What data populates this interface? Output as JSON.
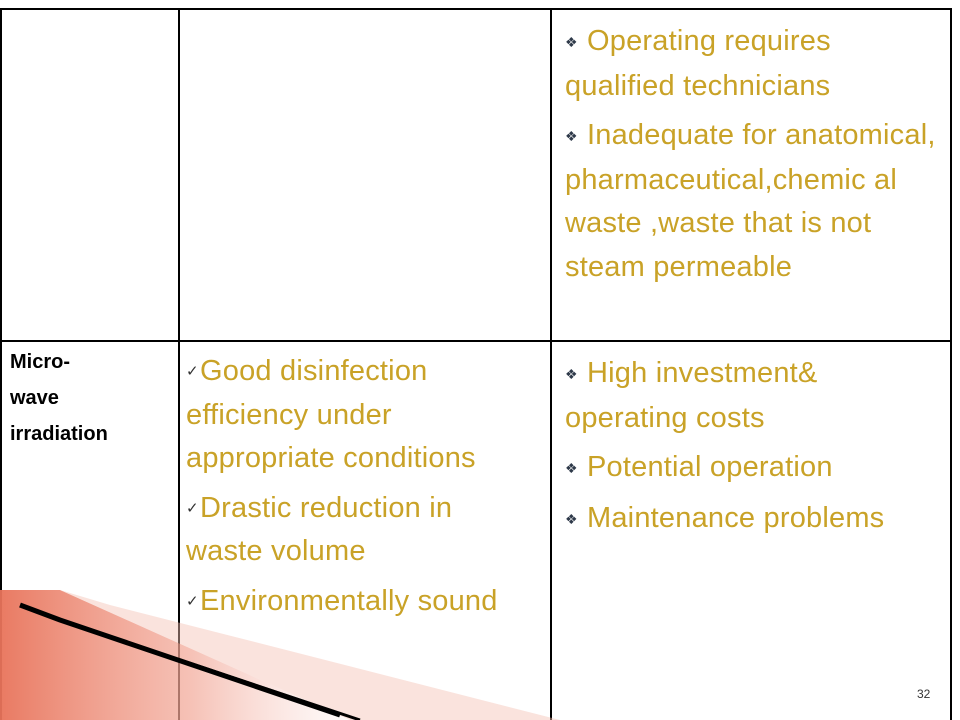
{
  "table": {
    "row1": {
      "disadvantages": [
        "Operating requires qualified technicians",
        "Inadequate for anatomical, pharmaceutical,chemic al waste ,waste that is not steam permeable"
      ]
    },
    "row2": {
      "label_lines": [
        "Micro-",
        "wave",
        "irradiation"
      ],
      "advantages": [
        "Good disinfection efficiency under appropriate conditions",
        "Drastic reduction in waste volume",
        "Environmentally sound"
      ],
      "disadvantages": [
        "High investment& operating costs",
        "Potential operation",
        "Maintenance problems"
      ]
    }
  },
  "page_number": "32",
  "colors": {
    "text_accent": "#C9A227",
    "border": "#000000",
    "arrow_fill": "#E8735A"
  },
  "icons": {
    "disadvantage_bullet": "diamond-bullet-icon",
    "advantage_bullet": "checkmark-icon"
  }
}
